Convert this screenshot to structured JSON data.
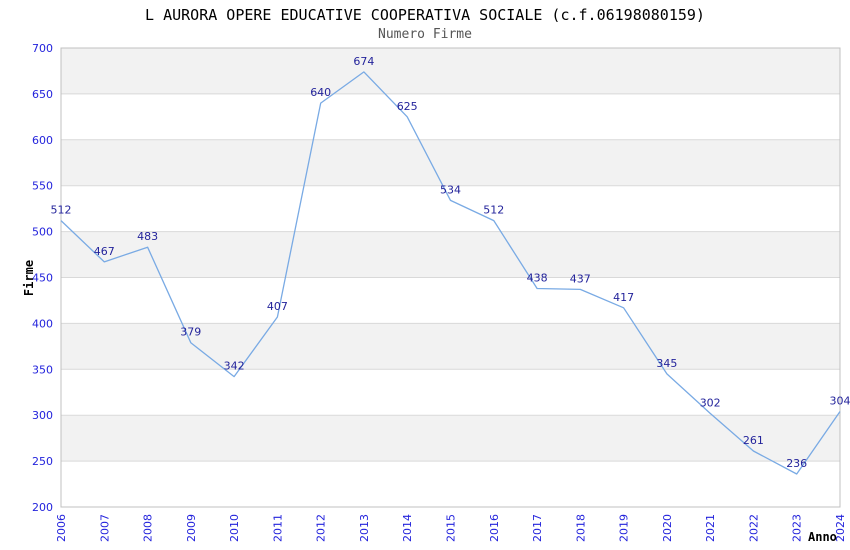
{
  "chart_data": {
    "type": "line",
    "title": "L AURORA OPERE EDUCATIVE COOPERATIVA SOCIALE (c.f.06198080159)",
    "subtitle": "Numero Firme",
    "xlabel": "Anno",
    "ylabel": "Firme",
    "categories": [
      "2006",
      "2007",
      "2008",
      "2009",
      "2010",
      "2011",
      "2012",
      "2013",
      "2014",
      "2015",
      "2016",
      "2017",
      "2018",
      "2019",
      "2020",
      "2021",
      "2022",
      "2023",
      "2024"
    ],
    "values": [
      512,
      467,
      483,
      379,
      342,
      407,
      640,
      674,
      625,
      534,
      512,
      438,
      437,
      417,
      345,
      302,
      261,
      236,
      304
    ],
    "ylim": [
      200,
      700
    ],
    "ytick_step": 50,
    "grid": true,
    "legend_position": "none",
    "colors": {
      "line": "#79aae4",
      "tick_label": "#2323dc",
      "value_label": "#23239b",
      "band": "#f2f2f2",
      "gridline": "#d9d9d9",
      "plot_border": "#c0c0c0",
      "background": "#ffffff"
    }
  }
}
